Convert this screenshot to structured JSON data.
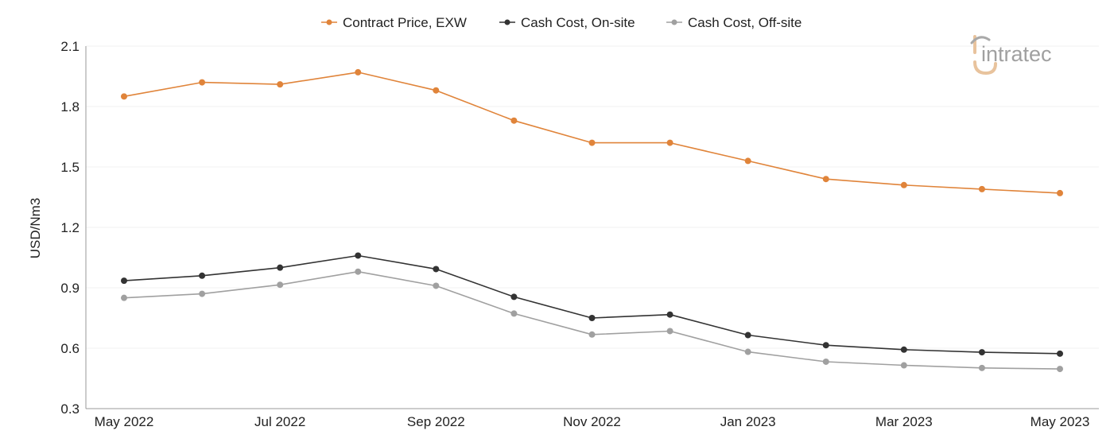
{
  "chart_data": {
    "type": "line",
    "title": "",
    "xlabel": "",
    "ylabel": "USD/Nm3",
    "ylim": [
      0.3,
      2.1
    ],
    "yticks": [
      "0.3",
      "0.6",
      "0.9",
      "1.2",
      "1.5",
      "1.8",
      "2.1"
    ],
    "grid": "horizontal",
    "legend_position": "top-center",
    "categories": [
      "May 2022",
      "Jun 2022",
      "Jul 2022",
      "Aug 2022",
      "Sep 2022",
      "Oct 2022",
      "Nov 2022",
      "Dec 2022",
      "Jan 2023",
      "Feb 2023",
      "Mar 2023",
      "Apr 2023",
      "May 2023"
    ],
    "xtick_labels": [
      "May 2022",
      "",
      "Jul 2022",
      "",
      "Sep 2022",
      "",
      "Nov 2022",
      "",
      "Jan 2023",
      "",
      "Mar 2023",
      "",
      "May 2023"
    ],
    "series": [
      {
        "name": "Contract Price, EXW",
        "color": "#e0843a",
        "values": [
          1.85,
          1.92,
          1.91,
          1.97,
          1.88,
          1.73,
          1.62,
          1.62,
          1.53,
          1.44,
          1.41,
          1.39,
          1.37
        ]
      },
      {
        "name": "Cash Cost, On-site",
        "color": "#333333",
        "values": [
          0.935,
          0.96,
          1.0,
          1.06,
          0.993,
          0.855,
          0.75,
          0.767,
          0.665,
          0.615,
          0.593,
          0.58,
          0.573
        ]
      },
      {
        "name": "Cash Cost, Off-site",
        "color": "#a0a0a0",
        "values": [
          0.85,
          0.87,
          0.915,
          0.98,
          0.91,
          0.772,
          0.668,
          0.685,
          0.582,
          0.533,
          0.515,
          0.502,
          0.497
        ]
      }
    ]
  },
  "logo": {
    "text": "intratec",
    "icon": "intratec-logo-icon"
  }
}
